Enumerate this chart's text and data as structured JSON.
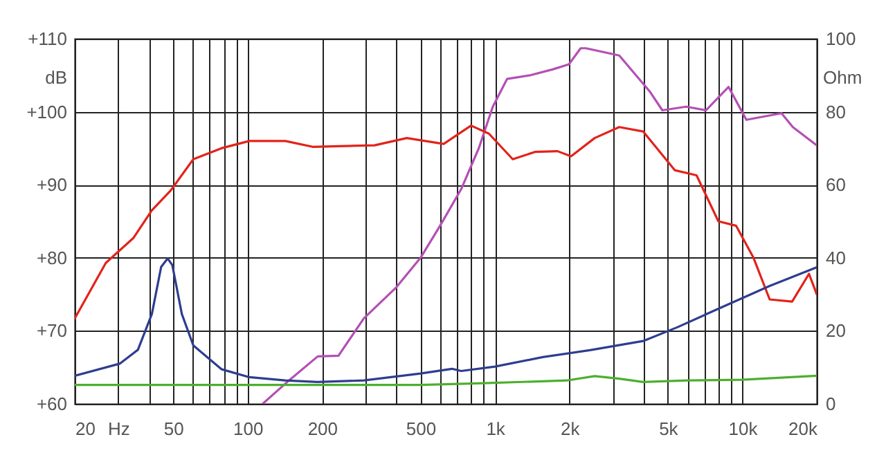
{
  "chart_data": {
    "type": "line",
    "ylabel": "dB",
    "y2label": "Ohm",
    "log": "x",
    "grid": true,
    "xlim": [
      20,
      20000
    ],
    "xticks": [
      20,
      {
        "value": 30,
        "label": "Hz"
      },
      {
        "value": 40,
        "label": null
      },
      50,
      {
        "value": 60,
        "label": null
      },
      {
        "value": 70,
        "label": null
      },
      {
        "value": 80,
        "label": null
      },
      {
        "value": 90,
        "label": null
      },
      100,
      200,
      {
        "value": 300,
        "label": null
      },
      {
        "value": 400,
        "label": null
      },
      500,
      {
        "value": 600,
        "label": null
      },
      {
        "value": 700,
        "label": null
      },
      {
        "value": 800,
        "label": null
      },
      {
        "value": 900,
        "label": null
      },
      {
        "value": 1000,
        "label": "1k"
      },
      {
        "value": 2000,
        "label": "2k"
      },
      {
        "value": 3000,
        "label": null
      },
      {
        "value": 4000,
        "label": null
      },
      {
        "value": 5000,
        "label": "5k"
      },
      {
        "value": 6000,
        "label": null
      },
      {
        "value": 7000,
        "label": null
      },
      {
        "value": 8000,
        "label": null
      },
      {
        "value": 9000,
        "label": null
      },
      {
        "value": 10000,
        "label": "10k"
      },
      {
        "value": 20000,
        "label": "20k"
      }
    ],
    "ylim": [
      60,
      110
    ],
    "yticks": [
      {
        "value": 60,
        "label": "+60"
      },
      {
        "value": 70,
        "label": "+70"
      },
      {
        "value": 80,
        "label": "+80"
      },
      {
        "value": 90,
        "label": "+90"
      },
      {
        "value": 100,
        "label": "+100"
      },
      {
        "value": 110,
        "label": "+110"
      }
    ],
    "y2lim": [
      0,
      100
    ],
    "y2ticks": [
      0,
      20,
      40,
      60,
      80,
      100
    ],
    "series": [
      {
        "color": "#b44fb4",
        "x": [
          115,
          148,
          192,
          233,
          295,
          400,
          500,
          600,
          730,
          860,
          980,
          1120,
          1390,
          1710,
          1990,
          2220,
          2330,
          3180,
          4240,
          4750,
          5930,
          7130,
          8800,
          10380,
          14400,
          16000,
          20000
        ],
        "values": [
          60,
          63.3,
          66.5,
          66.6,
          71.7,
          76,
          80,
          84.4,
          89.4,
          95,
          100.7,
          104.5,
          105,
          105.8,
          106.5,
          108.7,
          108.7,
          107.7,
          102.7,
          100.2,
          100.7,
          100.2,
          103.4,
          98.9,
          99.8,
          97.9,
          95.4
        ]
      },
      {
        "color": "#e2231a",
        "x": [
          20,
          26.7,
          34.5,
          41,
          48.8,
          60.3,
          78.3,
          101.6,
          142,
          183,
          326,
          440,
          620,
          800,
          945,
          1180,
          1450,
          1790,
          2030,
          2530,
          3180,
          3970,
          5330,
          6530,
          8000,
          9430,
          11100,
          12900,
          15900,
          18600,
          20000
        ],
        "values": [
          71.7,
          79.3,
          82.7,
          86.5,
          89.2,
          93.5,
          95,
          96,
          96,
          95.2,
          95.4,
          96.4,
          95.6,
          98.1,
          97,
          93.5,
          94.5,
          94.6,
          93.9,
          96.4,
          97.9,
          97.3,
          92,
          91.3,
          85,
          84.4,
          80,
          74.3,
          74,
          77.8,
          75
        ]
      },
      {
        "color": "#2e3d8f",
        "axis": "y2",
        "x": [
          20,
          30.4,
          36,
          41,
          44.7,
          47.5,
          49.6,
          54.2,
          60.3,
          78.3,
          101.6,
          142,
          192,
          295,
          500,
          670,
          730,
          1000,
          1560,
          2420,
          3970,
          5470,
          7970,
          12900,
          20000
        ],
        "values": [
          7.7,
          11,
          14.8,
          24.6,
          37.5,
          39.8,
          38,
          24.6,
          16,
          9.5,
          7.3,
          6.4,
          6,
          6.4,
          8.3,
          9.6,
          9,
          10.2,
          12.8,
          14.7,
          17.2,
          21,
          26,
          32.3,
          37.4
        ]
      },
      {
        "color": "#4caf2e",
        "axis": "y2",
        "x": [
          20,
          100,
          500,
          850,
          1950,
          2530,
          3180,
          3970,
          6000,
          10000,
          20000
        ],
        "values": [
          5.2,
          5.2,
          5.2,
          5.6,
          6.4,
          7.6,
          6.9,
          6,
          6.4,
          6.6,
          7.7
        ]
      }
    ]
  }
}
